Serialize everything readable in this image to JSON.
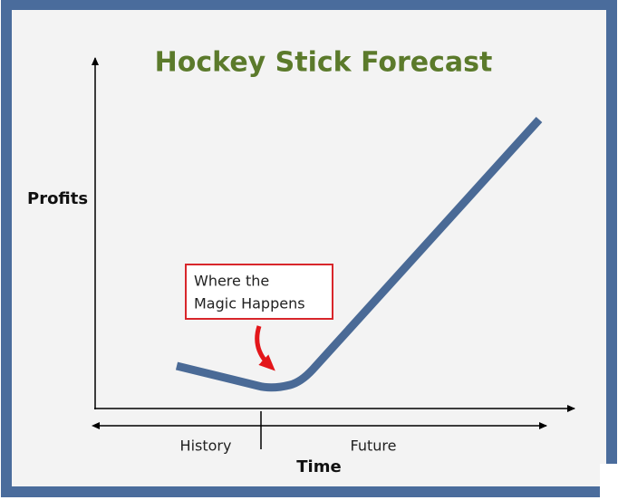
{
  "title": "Hockey Stick Forecast",
  "y_axis_label": "Profits",
  "x_axis_label": "Time",
  "annotation": {
    "lines": [
      "Where the",
      "Magic Happens"
    ]
  },
  "periods": [
    "History",
    "Future"
  ]
}
